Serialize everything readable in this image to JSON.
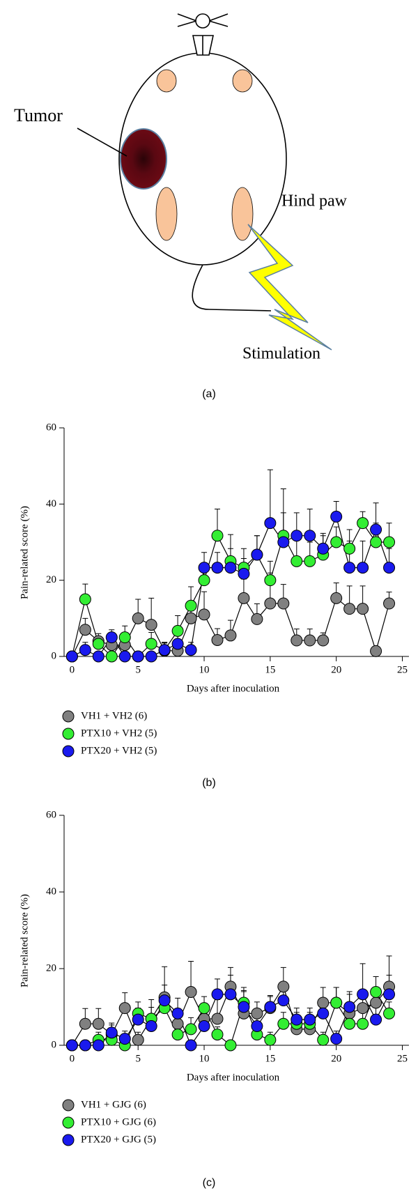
{
  "diagram": {
    "tumor_label": "Tumor",
    "hind_paw_label": "Hind paw",
    "stimulation_label": "Stimulation",
    "caption": "(a)"
  },
  "chart_data": [
    {
      "type": "line",
      "caption": "(b)",
      "x_label": "Days after inoculation",
      "y_label": "Pain-related score (%)",
      "x": [
        0,
        1,
        2,
        3,
        4,
        5,
        6,
        7,
        8,
        9,
        10,
        11,
        12,
        13,
        14,
        15,
        16,
        17,
        18,
        19,
        20,
        21,
        22,
        23,
        24
      ],
      "xlim": [
        -0.6,
        25.5
      ],
      "xticks": [
        0,
        5,
        10,
        15,
        20,
        25
      ],
      "ylim": [
        0,
        60
      ],
      "yticks": [
        0,
        20,
        40,
        60
      ],
      "series": [
        {
          "name": "VH1 + VH2 (6)",
          "color": "#808080",
          "values": [
            0,
            7,
            4,
            3,
            3,
            10,
            8.3,
            1.5,
            1.5,
            10,
            11,
            4.3,
            5.5,
            15.3,
            9.8,
            13.9,
            13.9,
            4.2,
            4.2,
            4.2,
            15.3,
            12.5,
            12.5,
            1.4,
            13.9
          ],
          "errors": [
            0,
            3,
            2,
            3,
            2,
            5,
            7,
            2,
            2,
            3,
            6,
            3,
            4,
            5,
            4,
            8,
            5,
            3,
            3,
            2,
            4,
            6,
            6,
            0,
            3
          ]
        },
        {
          "name": "PTX10 + VH2 (5)",
          "color": "#33ee33",
          "values": [
            0,
            15,
            3.3,
            0,
            5,
            0,
            3.3,
            1.7,
            6.7,
            13.3,
            20,
            31.7,
            25,
            23.3,
            26.7,
            20,
            31.7,
            25,
            25,
            26.7,
            30,
            28.3,
            35,
            30,
            30
          ],
          "errors": [
            0,
            4,
            2,
            0,
            3,
            0,
            3,
            2,
            4,
            5,
            4,
            7,
            7,
            5,
            5,
            5,
            6,
            6,
            5,
            5,
            4,
            5,
            3,
            5,
            5
          ]
        },
        {
          "name": "PTX20 + VH2 (5)",
          "color": "#1a1aee",
          "values": [
            0,
            1.7,
            0,
            5,
            0,
            0,
            0,
            1.7,
            3.3,
            1.7,
            23.3,
            23.3,
            23.3,
            21.7,
            26.7,
            35,
            30,
            31.7,
            31.7,
            28.3,
            36.7,
            23.3,
            23.3,
            33.3,
            23.3
          ],
          "errors": [
            0,
            2,
            0,
            2,
            0,
            0,
            0,
            2,
            3,
            2,
            4,
            4,
            5,
            4,
            5,
            14,
            14,
            6,
            7,
            4,
            4,
            7,
            7,
            7,
            5
          ]
        }
      ]
    },
    {
      "type": "line",
      "caption": "(c)",
      "x_label": "Days after inoculation",
      "y_label": "Pain-related score (%)",
      "x": [
        0,
        1,
        2,
        3,
        4,
        5,
        6,
        7,
        8,
        9,
        10,
        11,
        12,
        13,
        14,
        15,
        16,
        17,
        18,
        19,
        20,
        21,
        22,
        23,
        24
      ],
      "xlim": [
        -0.6,
        25.5
      ],
      "xticks": [
        0,
        5,
        10,
        15,
        20,
        25
      ],
      "ylim": [
        0,
        60
      ],
      "yticks": [
        0,
        20,
        40,
        60
      ],
      "series": [
        {
          "name": "VH1 + GJG (6)",
          "color": "#808080",
          "values": [
            0,
            5.6,
            5.6,
            2.8,
            9.7,
            1.4,
            6.9,
            12.5,
            5.6,
            13.9,
            6.9,
            6.9,
            15.3,
            8.3,
            8.3,
            9.7,
            15.3,
            4.2,
            4.2,
            11.1,
            11.1,
            8.3,
            9.7,
            11.1,
            15.3
          ],
          "errors": [
            0,
            4,
            4,
            3,
            4,
            2,
            5,
            8,
            4,
            8,
            4,
            5,
            5,
            6,
            3,
            3,
            5,
            3,
            3,
            4,
            4,
            5,
            4,
            4,
            8
          ]
        },
        {
          "name": "PTX10 + GJG (6)",
          "color": "#33ee33",
          "values": [
            0,
            0,
            1.4,
            1.4,
            0,
            8.3,
            6.9,
            9.7,
            2.8,
            4.2,
            9.7,
            2.8,
            0,
            11.1,
            2.8,
            1.4,
            5.6,
            5.6,
            5.6,
            1.4,
            11.1,
            5.6,
            5.6,
            13.9,
            8.3
          ],
          "errors": [
            0,
            0,
            2,
            2,
            0,
            3,
            3,
            4,
            3,
            3,
            3,
            2,
            0,
            4,
            2,
            2,
            3,
            3,
            3,
            2,
            4,
            3,
            3,
            4,
            3
          ]
        },
        {
          "name": "PTX20 + GJG (5)",
          "color": "#1a1aee",
          "values": [
            0,
            0,
            0,
            3.3,
            1.7,
            6.7,
            5,
            11.7,
            8.3,
            0,
            5,
            13.3,
            13.3,
            10,
            5,
            10,
            11.7,
            6.7,
            6.7,
            8.3,
            1.7,
            10,
            13.3,
            6.7,
            13.3
          ],
          "errors": [
            0,
            0,
            0,
            2,
            2,
            3,
            3,
            4,
            4,
            0,
            3,
            4,
            5,
            4,
            3,
            3,
            4,
            3,
            3,
            4,
            2,
            4,
            8,
            5,
            5
          ]
        }
      ]
    }
  ]
}
